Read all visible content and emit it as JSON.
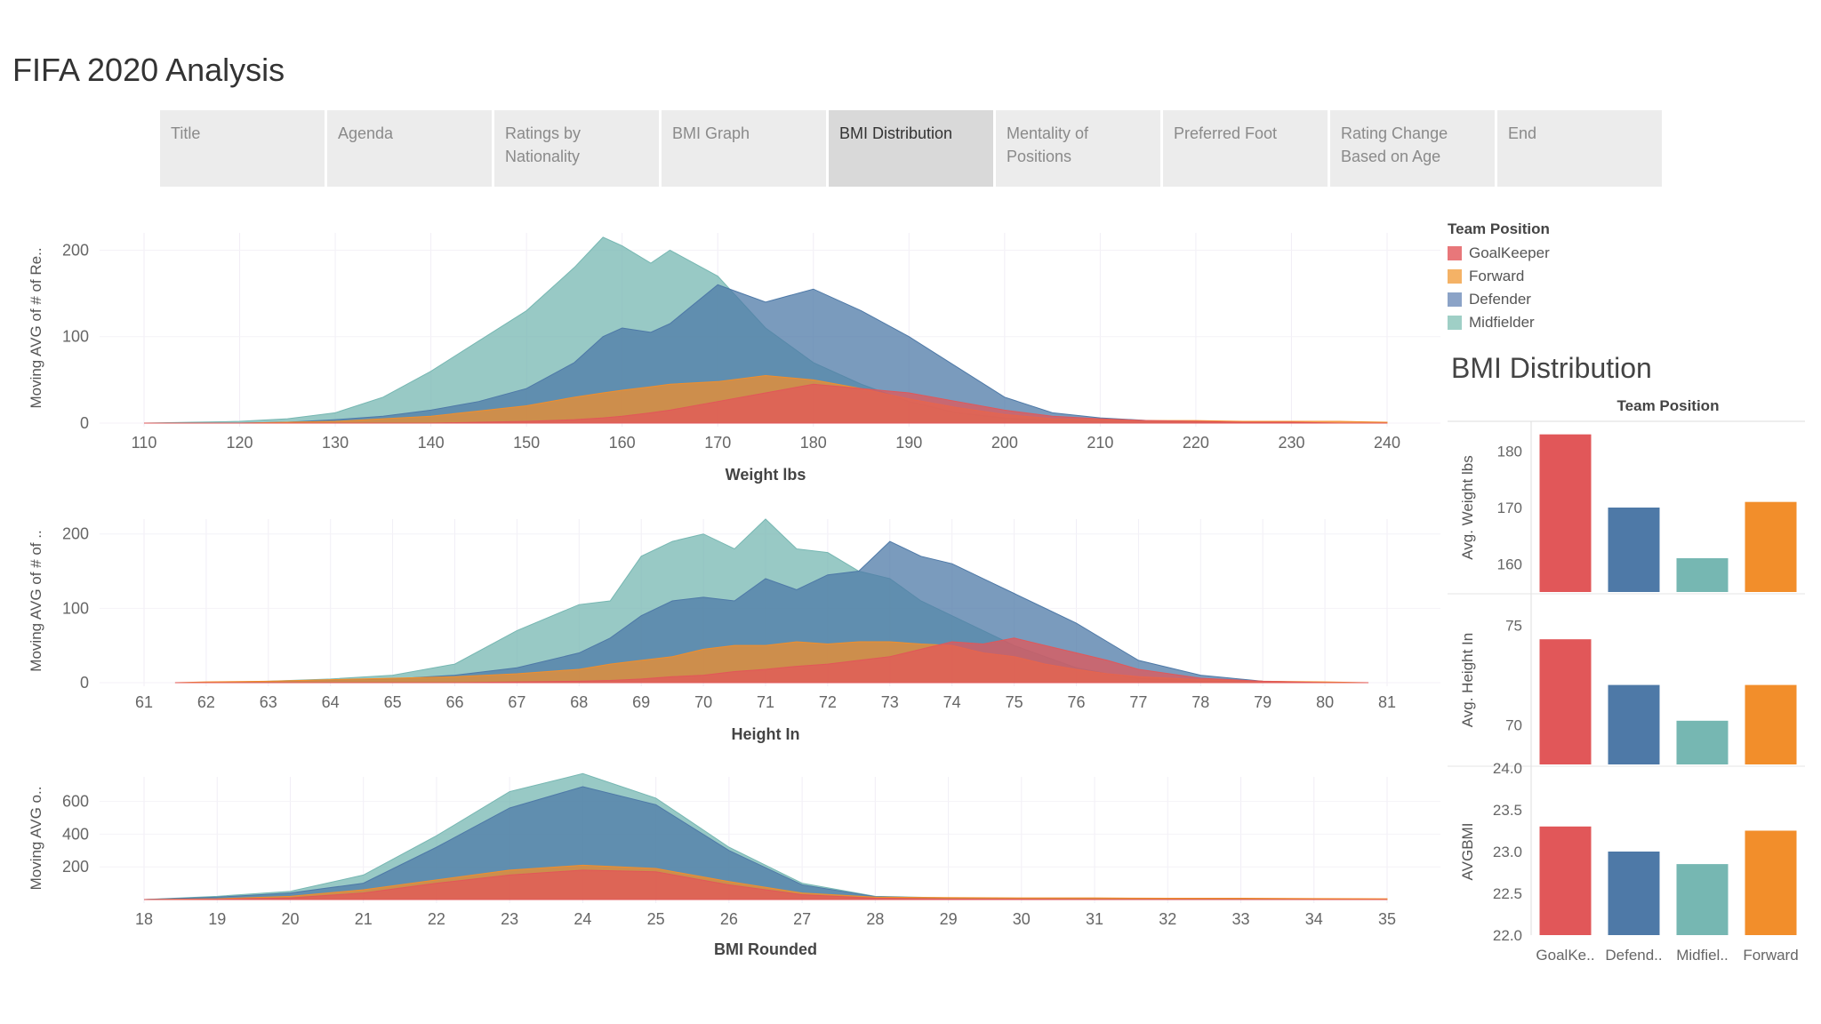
{
  "page": {
    "title": "FIFA 2020 Analysis"
  },
  "tabs": [
    {
      "label": "Title",
      "active": false
    },
    {
      "label": "Agenda",
      "active": false
    },
    {
      "label": "Ratings by Nationality",
      "active": false
    },
    {
      "label": "BMI Graph",
      "active": false
    },
    {
      "label": "BMI Distribution",
      "active": true
    },
    {
      "label": "Mentality of Positions",
      "active": false
    },
    {
      "label": "Preferred Foot",
      "active": false
    },
    {
      "label": "Rating Change Based on Age",
      "active": false
    },
    {
      "label": "End",
      "active": false
    }
  ],
  "legend": {
    "title": "Team Position",
    "items": [
      {
        "label": "GoalKeeper",
        "color": "#e8777a"
      },
      {
        "label": "Forward",
        "color": "#f4b266"
      },
      {
        "label": "Defender",
        "color": "#8ba3c7"
      },
      {
        "label": "Midfielder",
        "color": "#9fcfc6"
      }
    ]
  },
  "bar_panel": {
    "title": "BMI Distribution",
    "header": "Team Position"
  },
  "colors": {
    "goalkeeper": "#e15759",
    "forward": "#f28e2b",
    "defender": "#4e79a7",
    "midfielder": "#76b7b2"
  },
  "chart_data": [
    {
      "type": "area",
      "xlabel": "Weight lbs",
      "ylabel": "Moving AVG of # of Re..",
      "xlim": [
        110,
        240
      ],
      "xticks": [
        110,
        120,
        130,
        140,
        150,
        160,
        170,
        180,
        190,
        200,
        210,
        220,
        230,
        240
      ],
      "ylim": [
        0,
        220
      ],
      "yticks": [
        0,
        100,
        200
      ],
      "x": [
        110,
        115,
        120,
        125,
        130,
        135,
        140,
        145,
        150,
        155,
        158,
        160,
        163,
        165,
        170,
        175,
        180,
        185,
        190,
        195,
        200,
        205,
        210,
        215,
        220,
        225,
        230,
        235,
        240
      ],
      "series": [
        {
          "key": "midfielder",
          "values": [
            0,
            1,
            2,
            5,
            12,
            30,
            60,
            95,
            130,
            180,
            215,
            205,
            185,
            200,
            170,
            110,
            70,
            45,
            25,
            12,
            6,
            3,
            2,
            1,
            1,
            0,
            0,
            0,
            0
          ]
        },
        {
          "key": "defender",
          "values": [
            0,
            0,
            0,
            1,
            4,
            8,
            15,
            25,
            40,
            70,
            100,
            110,
            105,
            115,
            160,
            140,
            155,
            130,
            100,
            65,
            30,
            12,
            6,
            3,
            1,
            1,
            0,
            0,
            0
          ]
        },
        {
          "key": "forward",
          "values": [
            0,
            0,
            0,
            1,
            2,
            5,
            8,
            14,
            20,
            30,
            35,
            38,
            42,
            45,
            48,
            55,
            50,
            40,
            28,
            18,
            10,
            5,
            4,
            3,
            3,
            2,
            2,
            2,
            1
          ]
        },
        {
          "key": "goalkeeper",
          "values": [
            0,
            0,
            0,
            0,
            0,
            0,
            0,
            1,
            2,
            4,
            6,
            8,
            12,
            15,
            25,
            35,
            45,
            40,
            35,
            25,
            15,
            8,
            5,
            3,
            2,
            1,
            1,
            0,
            0
          ]
        }
      ]
    },
    {
      "type": "area",
      "xlabel": "Height In",
      "ylabel": "Moving AVG of # of ..",
      "xlim": [
        61,
        81
      ],
      "xticks": [
        61,
        62,
        63,
        64,
        65,
        66,
        67,
        68,
        69,
        70,
        71,
        72,
        73,
        74,
        75,
        76,
        77,
        78,
        79,
        80,
        81
      ],
      "ylim": [
        0,
        220
      ],
      "yticks": [
        0,
        100,
        200
      ],
      "x": [
        61.5,
        62,
        63,
        64,
        65,
        66,
        67,
        68,
        68.5,
        69,
        69.5,
        70,
        70.5,
        71,
        71.5,
        72,
        72.5,
        73,
        73.5,
        74,
        74.5,
        75,
        75.5,
        76,
        76.5,
        77,
        78,
        79,
        80,
        80.7
      ],
      "series": [
        {
          "key": "midfielder",
          "values": [
            0,
            0,
            2,
            5,
            10,
            25,
            70,
            105,
            110,
            170,
            190,
            200,
            180,
            220,
            180,
            175,
            150,
            140,
            110,
            90,
            70,
            50,
            35,
            20,
            12,
            6,
            2,
            1,
            0,
            0
          ]
        },
        {
          "key": "defender",
          "values": [
            0,
            0,
            1,
            3,
            5,
            10,
            20,
            40,
            60,
            90,
            110,
            115,
            110,
            140,
            125,
            145,
            150,
            190,
            170,
            160,
            140,
            120,
            100,
            80,
            55,
            30,
            10,
            2,
            0,
            0
          ]
        },
        {
          "key": "forward",
          "values": [
            0,
            1,
            2,
            4,
            6,
            8,
            12,
            18,
            25,
            30,
            35,
            45,
            50,
            50,
            55,
            52,
            55,
            55,
            52,
            50,
            40,
            35,
            25,
            18,
            12,
            8,
            4,
            2,
            1,
            0
          ]
        },
        {
          "key": "goalkeeper",
          "values": [
            0,
            0,
            0,
            0,
            0,
            0,
            1,
            2,
            3,
            5,
            8,
            10,
            15,
            18,
            22,
            25,
            30,
            35,
            45,
            55,
            52,
            60,
            50,
            40,
            30,
            18,
            6,
            2,
            0,
            0
          ]
        }
      ]
    },
    {
      "type": "area",
      "xlabel": "BMI Rounded",
      "ylabel": "Moving AVG o..",
      "xlim": [
        18,
        35
      ],
      "xticks": [
        18,
        19,
        20,
        21,
        22,
        23,
        24,
        25,
        26,
        27,
        28,
        29,
        30,
        31,
        32,
        33,
        34,
        35
      ],
      "ylim": [
        0,
        750
      ],
      "yticks": [
        200,
        400,
        600
      ],
      "x": [
        18,
        19,
        20,
        21,
        22,
        23,
        24,
        25,
        26,
        27,
        28,
        29,
        30,
        31,
        32,
        33,
        34,
        35
      ],
      "series": [
        {
          "key": "midfielder",
          "values": [
            0,
            20,
            50,
            150,
            390,
            660,
            770,
            620,
            320,
            100,
            20,
            10,
            8,
            6,
            5,
            4,
            3,
            2
          ]
        },
        {
          "key": "defender",
          "values": [
            0,
            15,
            40,
            100,
            320,
            560,
            690,
            580,
            300,
            90,
            18,
            8,
            6,
            5,
            4,
            3,
            2,
            1
          ]
        },
        {
          "key": "forward",
          "values": [
            0,
            5,
            20,
            60,
            120,
            180,
            210,
            190,
            110,
            40,
            15,
            12,
            10,
            10,
            8,
            8,
            6,
            5
          ]
        },
        {
          "key": "goalkeeper",
          "values": [
            0,
            2,
            10,
            40,
            100,
            150,
            180,
            170,
            90,
            30,
            8,
            3,
            2,
            1,
            1,
            0,
            0,
            0
          ]
        }
      ]
    },
    {
      "type": "bar",
      "ylabel": "Avg. Weight lbs",
      "ylim": [
        155,
        185
      ],
      "yticks": [
        160,
        170,
        180
      ],
      "categories": [
        "GoalKe..",
        "Defend..",
        "Midfiel..",
        "Forward"
      ],
      "keys": [
        "goalkeeper",
        "defender",
        "midfielder",
        "forward"
      ],
      "values": [
        183,
        170,
        161,
        171
      ]
    },
    {
      "type": "bar",
      "ylabel": "Avg. Height In",
      "ylim": [
        68,
        76.5
      ],
      "yticks": [
        70,
        75
      ],
      "categories": [
        "GoalKe..",
        "Defend..",
        "Midfiel..",
        "Forward"
      ],
      "keys": [
        "goalkeeper",
        "defender",
        "midfielder",
        "forward"
      ],
      "values": [
        74.3,
        72,
        70.2,
        72
      ]
    },
    {
      "type": "bar",
      "ylabel": "AVGBMI",
      "ylim": [
        22.0,
        24.0
      ],
      "yticks": [
        22.0,
        22.5,
        23.0,
        23.5,
        24.0
      ],
      "categories": [
        "GoalKe..",
        "Defend..",
        "Midfiel..",
        "Forward"
      ],
      "keys": [
        "goalkeeper",
        "defender",
        "midfielder",
        "forward"
      ],
      "values": [
        23.3,
        23.0,
        22.85,
        23.25
      ]
    }
  ]
}
